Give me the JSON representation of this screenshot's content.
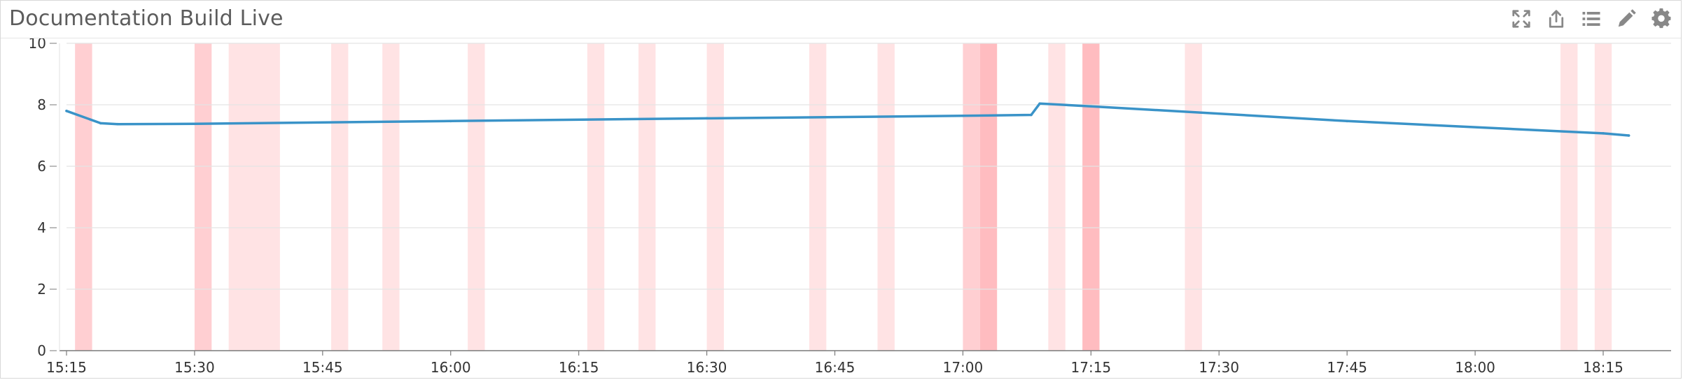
{
  "widget": {
    "title": "Documentation Build Live"
  },
  "toolbar": {
    "icons": [
      "expand-icon",
      "share-icon",
      "list-icon",
      "edit-icon",
      "settings-icon"
    ]
  },
  "colors": {
    "line": "#3a93c8",
    "band_light": "#ffe3e4",
    "band_medium": "#ffcfd2",
    "band_strong": "#ffbcc0",
    "grid": "#e4e4e4",
    "axis": "#7a7a7a"
  },
  "chart_data": {
    "type": "line",
    "title": "",
    "xlabel": "",
    "ylabel": "",
    "ylim": [
      0,
      10
    ],
    "xlim": [
      "15:15",
      "18:20"
    ],
    "yticks": [
      0,
      2,
      4,
      6,
      8,
      10
    ],
    "xticks": [
      "15:15",
      "15:30",
      "15:45",
      "16:00",
      "16:15",
      "16:30",
      "16:45",
      "17:00",
      "17:15",
      "17:30",
      "17:45",
      "18:00",
      "18:15"
    ],
    "grid": true,
    "series": [
      {
        "x": [
          "15:15",
          "15:19",
          "15:21",
          "15:30",
          "16:00",
          "16:30",
          "17:00",
          "17:08",
          "17:09",
          "17:15",
          "17:45",
          "18:15",
          "18:18"
        ],
        "y": [
          7.8,
          7.4,
          7.37,
          7.38,
          7.47,
          7.56,
          7.64,
          7.67,
          8.04,
          7.95,
          7.47,
          7.07,
          7.0
        ]
      }
    ],
    "shaded_bands": [
      {
        "start": "15:16",
        "end": "15:18",
        "level": "medium"
      },
      {
        "start": "15:30",
        "end": "15:32",
        "level": "medium"
      },
      {
        "start": "15:34",
        "end": "15:40",
        "level": "light"
      },
      {
        "start": "15:46",
        "end": "15:48",
        "level": "light"
      },
      {
        "start": "15:52",
        "end": "15:54",
        "level": "light"
      },
      {
        "start": "16:02",
        "end": "16:04",
        "level": "light"
      },
      {
        "start": "16:16",
        "end": "16:18",
        "level": "light"
      },
      {
        "start": "16:22",
        "end": "16:24",
        "level": "light"
      },
      {
        "start": "16:30",
        "end": "16:32",
        "level": "light"
      },
      {
        "start": "16:42",
        "end": "16:44",
        "level": "light"
      },
      {
        "start": "16:50",
        "end": "16:52",
        "level": "light"
      },
      {
        "start": "17:00",
        "end": "17:02",
        "level": "medium"
      },
      {
        "start": "17:02",
        "end": "17:04",
        "level": "strong"
      },
      {
        "start": "17:10",
        "end": "17:12",
        "level": "light"
      },
      {
        "start": "17:14",
        "end": "17:16",
        "level": "strong"
      },
      {
        "start": "17:26",
        "end": "17:28",
        "level": "light"
      },
      {
        "start": "18:10",
        "end": "18:12",
        "level": "light"
      },
      {
        "start": "18:14",
        "end": "18:16",
        "level": "light"
      }
    ]
  }
}
